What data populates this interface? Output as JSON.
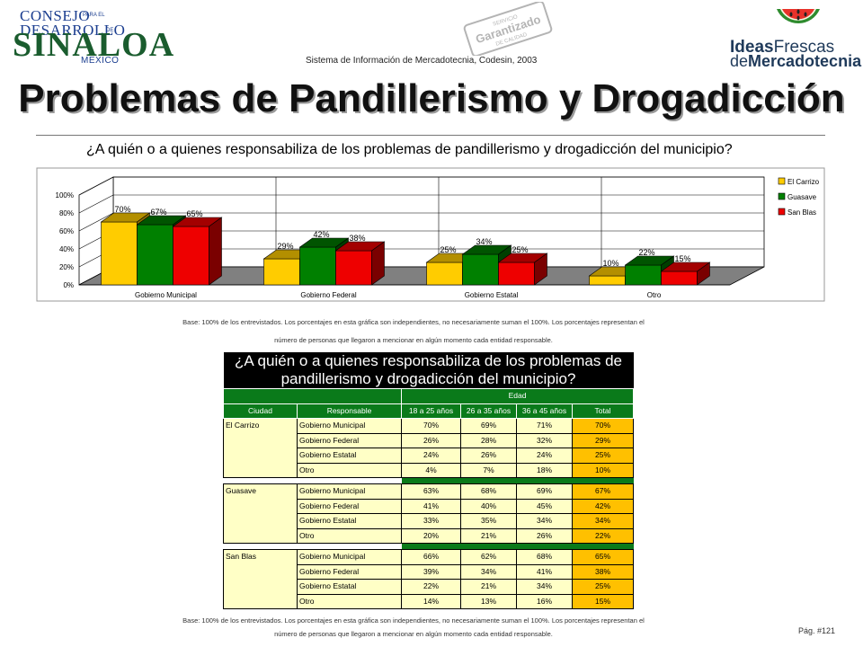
{
  "header": {
    "logo_left": {
      "line1": "CONSEJO",
      "line2": "DESARROLLO",
      "line3": "SINALOA",
      "small1": "PARA EL",
      "small2": "DE",
      "line4": "MEXICO"
    },
    "stamp": {
      "line1": "SERVICIO",
      "line2": "Garantizado",
      "line3": "DE CALIDAD"
    },
    "logo_right": {
      "word1": "Ideas",
      "word2": "Frescas",
      "word3": "de",
      "word4": "Mercadotecnia"
    },
    "system_caption": "Sistema de Información de Mercadotecnia, Codesin, 2003",
    "title": "Problemas de Pandillerismo y Drogadicción"
  },
  "chart_question": "¿A quién o a quienes responsabiliza de los problemas de pandillerismo y drogadicción del municipio?",
  "chart_data": {
    "type": "bar",
    "categories": [
      "Gobierno Municipal",
      "Gobierno Federal",
      "Gobierno Estatal",
      "Otro"
    ],
    "series": [
      {
        "name": "El Carrizo",
        "values": [
          70,
          29,
          25,
          10
        ]
      },
      {
        "name": "Guasave",
        "values": [
          67,
          42,
          34,
          22
        ]
      },
      {
        "name": "San Blas",
        "values": [
          65,
          38,
          25,
          15
        ]
      }
    ],
    "data_labels": [
      [
        "70%",
        "29%",
        "25%",
        "10%"
      ],
      [
        "67%",
        "42%",
        "34%",
        "22%"
      ],
      [
        "65%",
        "38%",
        "25%",
        "15%"
      ]
    ],
    "y_ticks": [
      "0%",
      "20%",
      "40%",
      "60%",
      "80%",
      "100%"
    ],
    "ylim": [
      0,
      100
    ],
    "legend_position": "right",
    "colors": {
      "El Carrizo": "#ffcc00",
      "Guasave": "#008000",
      "San Blas": "#ee0000"
    }
  },
  "notes": {
    "line1": "Base: 100% de los entrevistados. Los porcentajes en esta gráfica son independientes, no necesariamente suman el 100%. Los porcentajes representan el",
    "line2": "número de personas que llegaron a mencionar en algún momento cada entidad responsable."
  },
  "table": {
    "title": "¿A quién o a quienes responsabiliza de los problemas de pandillerismo y drogadicción del municipio?",
    "group_header": "Edad",
    "headers": [
      "Ciudad",
      "Responsable",
      "18 a 25 años",
      "26 a 35 años",
      "36 a 45 años",
      "Total"
    ],
    "groups": [
      {
        "city": "El Carrizo",
        "rows": [
          {
            "responsable": "Gobierno Municipal",
            "a": "70%",
            "b": "69%",
            "c": "71%",
            "total": "70%"
          },
          {
            "responsable": "Gobierno Federal",
            "a": "26%",
            "b": "28%",
            "c": "32%",
            "total": "29%"
          },
          {
            "responsable": "Gobierno Estatal",
            "a": "24%",
            "b": "26%",
            "c": "24%",
            "total": "25%"
          },
          {
            "responsable": "Otro",
            "a": "4%",
            "b": "7%",
            "c": "18%",
            "total": "10%"
          }
        ]
      },
      {
        "city": "Guasave",
        "rows": [
          {
            "responsable": "Gobierno Municipal",
            "a": "63%",
            "b": "68%",
            "c": "69%",
            "total": "67%"
          },
          {
            "responsable": "Gobierno Federal",
            "a": "41%",
            "b": "40%",
            "c": "45%",
            "total": "42%"
          },
          {
            "responsable": "Gobierno Estatal",
            "a": "33%",
            "b": "35%",
            "c": "34%",
            "total": "34%"
          },
          {
            "responsable": "Otro",
            "a": "20%",
            "b": "21%",
            "c": "26%",
            "total": "22%"
          }
        ]
      },
      {
        "city": "San Blas",
        "rows": [
          {
            "responsable": "Gobierno Municipal",
            "a": "66%",
            "b": "62%",
            "c": "68%",
            "total": "65%"
          },
          {
            "responsable": "Gobierno Federal",
            "a": "39%",
            "b": "34%",
            "c": "41%",
            "total": "38%"
          },
          {
            "responsable": "Gobierno Estatal",
            "a": "22%",
            "b": "21%",
            "c": "34%",
            "total": "25%"
          },
          {
            "responsable": "Otro",
            "a": "14%",
            "b": "13%",
            "c": "16%",
            "total": "15%"
          }
        ]
      }
    ]
  },
  "page_number": "Pág. #121"
}
